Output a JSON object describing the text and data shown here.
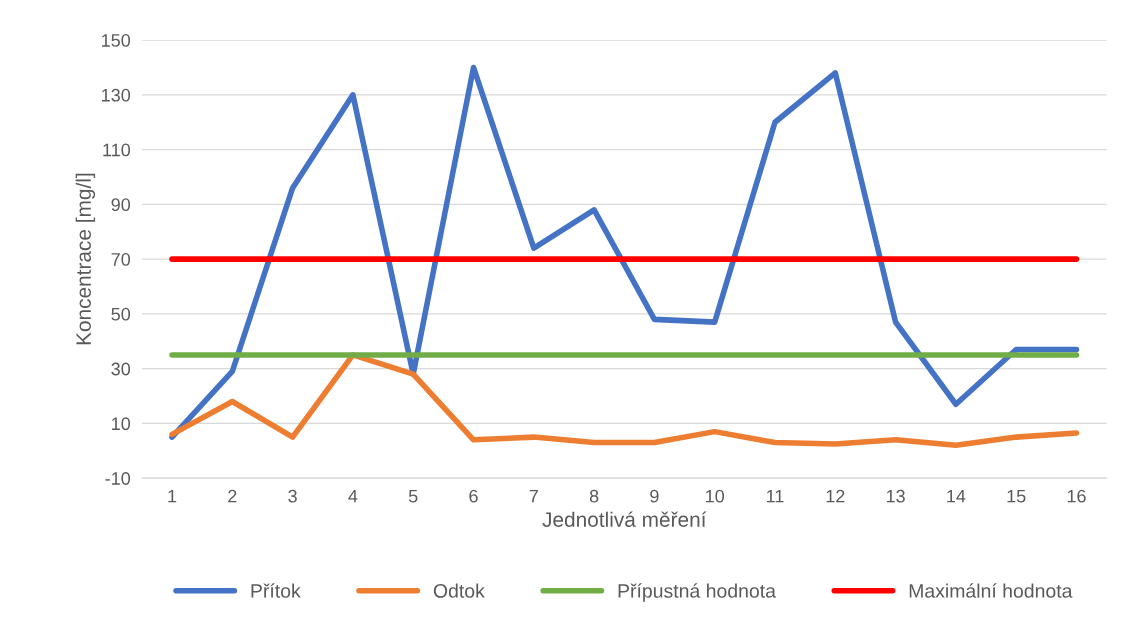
{
  "chart_data": {
    "type": "line",
    "xlabel": "Jednotlivá měření",
    "ylabel": "Koncentrace [mg/l]",
    "categories": [
      "1",
      "2",
      "3",
      "4",
      "5",
      "6",
      "7",
      "8",
      "9",
      "10",
      "11",
      "12",
      "13",
      "14",
      "15",
      "16"
    ],
    "series": [
      {
        "name": "Přítok",
        "color": "#4472c4",
        "values": [
          5,
          29,
          96,
          130,
          28,
          140,
          74,
          88,
          48,
          47,
          120,
          138,
          47,
          17,
          37,
          37
        ]
      },
      {
        "name": "Odtok",
        "color": "#ed7d31",
        "values": [
          6,
          18,
          5,
          35,
          28,
          4,
          5,
          3,
          3,
          7,
          3,
          2.5,
          4,
          2,
          5,
          6.5
        ]
      },
      {
        "name": "Přípustná hodnota",
        "color": "#70ad47",
        "values": [
          35,
          35,
          35,
          35,
          35,
          35,
          35,
          35,
          35,
          35,
          35,
          35,
          35,
          35,
          35,
          35
        ]
      },
      {
        "name": "Maximální hodnota",
        "color": "#ff0000",
        "values": [
          70,
          70,
          70,
          70,
          70,
          70,
          70,
          70,
          70,
          70,
          70,
          70,
          70,
          70,
          70,
          70
        ]
      }
    ],
    "ylim": [
      -10,
      150
    ],
    "yticks": [
      -10,
      10,
      30,
      50,
      70,
      90,
      110,
      130,
      150
    ],
    "grid": "y",
    "legend": "bottom",
    "marker": "none",
    "line_style": "solid"
  }
}
